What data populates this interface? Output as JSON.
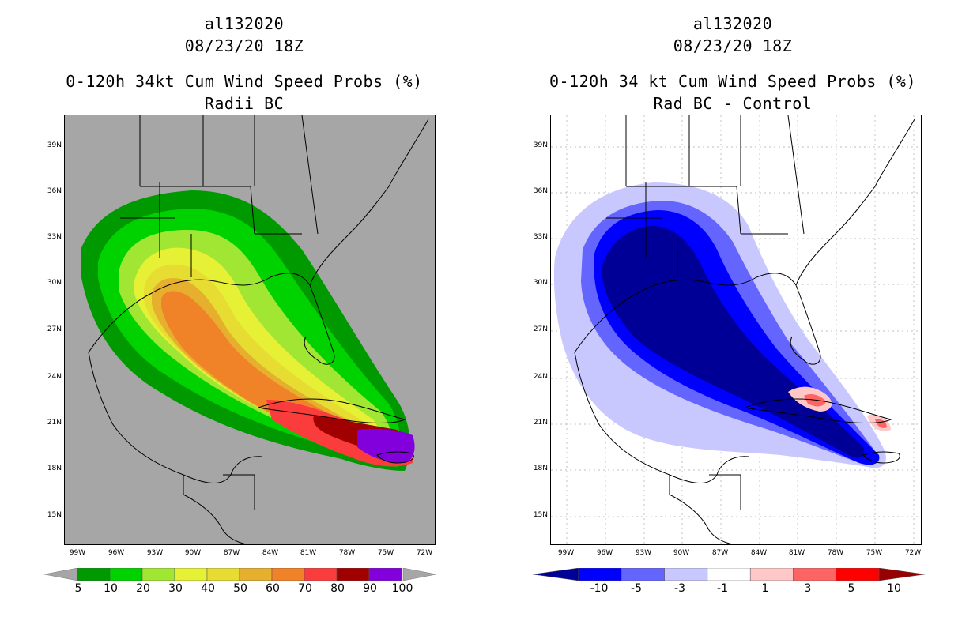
{
  "left": {
    "storm_id": "al132020",
    "date": "08/23/20 18Z",
    "title": "0-120h 34kt Cum Wind Speed Probs (%)",
    "subtitle": "Radii BC",
    "background": "#a6a6a6",
    "lat_labels": [
      "39N",
      "36N",
      "33N",
      "30N",
      "27N",
      "24N",
      "21N",
      "18N",
      "15N"
    ],
    "lon_labels": [
      "99W",
      "96W",
      "93W",
      "90W",
      "87W",
      "84W",
      "81W",
      "78W",
      "75W",
      "72W"
    ],
    "colorbar_labels": [
      "5",
      "10",
      "20",
      "30",
      "40",
      "50",
      "60",
      "70",
      "80",
      "90",
      "100"
    ],
    "colorbar_colors": [
      "#009a00",
      "#00d200",
      "#a0e632",
      "#e6f035",
      "#e6dc32",
      "#e6af2d",
      "#f08228",
      "#fa3c3c",
      "#a00000",
      "#8200dc"
    ]
  },
  "right": {
    "storm_id": "al132020",
    "date": "08/23/20 18Z",
    "title": "0-120h 34 kt Cum Wind Speed Probs (%)",
    "subtitle": "Rad BC - Control",
    "background": "#ffffff",
    "lat_labels": [
      "39N",
      "36N",
      "33N",
      "30N",
      "27N",
      "24N",
      "21N",
      "18N",
      "15N"
    ],
    "lon_labels": [
      "99W",
      "96W",
      "93W",
      "90W",
      "87W",
      "84W",
      "81W",
      "78W",
      "75W",
      "72W"
    ],
    "colorbar_labels": [
      "-10",
      "-5",
      "-3",
      "-1",
      "1",
      "3",
      "5",
      "10"
    ],
    "colorbar_colors": [
      "#000096",
      "#0000ff",
      "#6464ff",
      "#c8c8ff",
      "#ffffff",
      "#ffc8c8",
      "#ff6464",
      "#ff0000",
      "#960000"
    ]
  }
}
